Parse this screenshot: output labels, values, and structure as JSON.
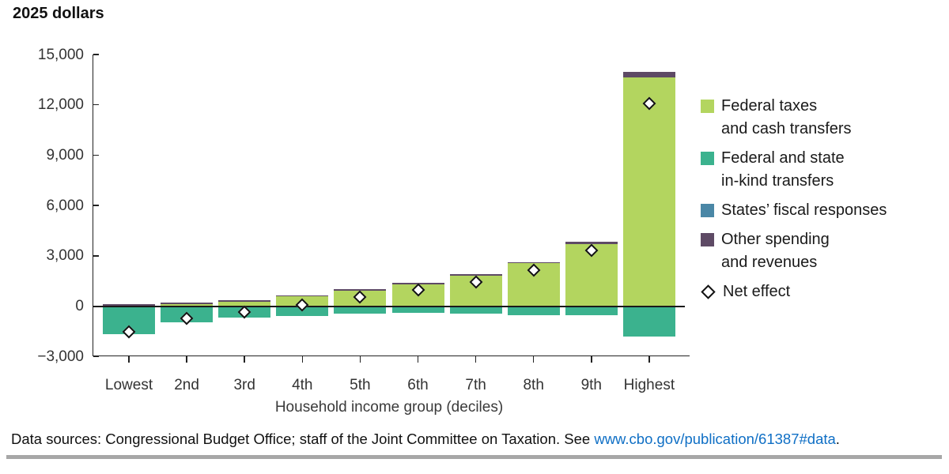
{
  "title": "2025 dollars",
  "chart_data": {
    "type": "bar",
    "stacked": true,
    "title": "2025 dollars",
    "xlabel": "Household income group (deciles)",
    "ylabel": "2025 dollars",
    "ylim": [
      -3000,
      15000
    ],
    "ytick_step": 3000,
    "yticks": [
      -3000,
      0,
      3000,
      6000,
      9000,
      12000,
      15000
    ],
    "ytick_labels": [
      "−3,000",
      "0",
      "3,000",
      "6,000",
      "9,000",
      "12,000",
      "15,000"
    ],
    "categories": [
      "Lowest",
      "2nd",
      "3rd",
      "4th",
      "5th",
      "6th",
      "7th",
      "8th",
      "9th",
      "Highest"
    ],
    "series": [
      {
        "name": "Federal taxes and cash transfers",
        "color": "#b3d55f",
        "values": [
          0,
          120,
          280,
          570,
          930,
          1290,
          1820,
          2550,
          3700,
          13650
        ]
      },
      {
        "name": "Federal and state in-kind transfers",
        "color": "#3bb28e",
        "values": [
          -1660,
          -960,
          -690,
          -570,
          -470,
          -410,
          -460,
          -520,
          -560,
          -1800
        ]
      },
      {
        "name": "States’ fiscal responses",
        "color": "#4a87a6",
        "values": [
          0,
          0,
          0,
          0,
          0,
          0,
          0,
          0,
          0,
          0
        ]
      },
      {
        "name": "Other spending and revenues",
        "color": "#5e4a65",
        "values": [
          100,
          110,
          95,
          80,
          80,
          90,
          80,
          80,
          150,
          300
        ]
      }
    ],
    "markers": {
      "name": "Net effect",
      "shape": "diamond",
      "values": [
        -1550,
        -720,
        -330,
        60,
        550,
        960,
        1450,
        2150,
        3300,
        12100
      ]
    },
    "grid": false,
    "legend_position": "right"
  },
  "legend": {
    "items": [
      {
        "type": "swatch",
        "color": "#b3d55f",
        "lines": [
          "Federal taxes",
          "and cash transfers"
        ]
      },
      {
        "type": "swatch",
        "color": "#3bb28e",
        "lines": [
          "Federal and state",
          "in-kind transfers"
        ]
      },
      {
        "type": "swatch",
        "color": "#4a87a6",
        "lines": [
          "States’ fiscal responses"
        ]
      },
      {
        "type": "swatch",
        "color": "#5e4a65",
        "lines": [
          "Other spending",
          "and revenues"
        ]
      },
      {
        "type": "diamond",
        "lines": [
          "Net effect"
        ]
      }
    ]
  },
  "footer": {
    "prefix": "Data sources: Congressional Budget Office; staff of the Joint Committee on Taxation. See ",
    "link": "www.cbo.gov/publication/61387#data",
    "suffix": "."
  },
  "colors": {
    "green": "#b3d55f",
    "teal": "#3bb28e",
    "blue": "#4a87a6",
    "purple": "#5e4a65",
    "axis": "#222222",
    "link": "#0f6fc5",
    "divider": "#a7a7a7",
    "text": "#1a1a1a"
  }
}
